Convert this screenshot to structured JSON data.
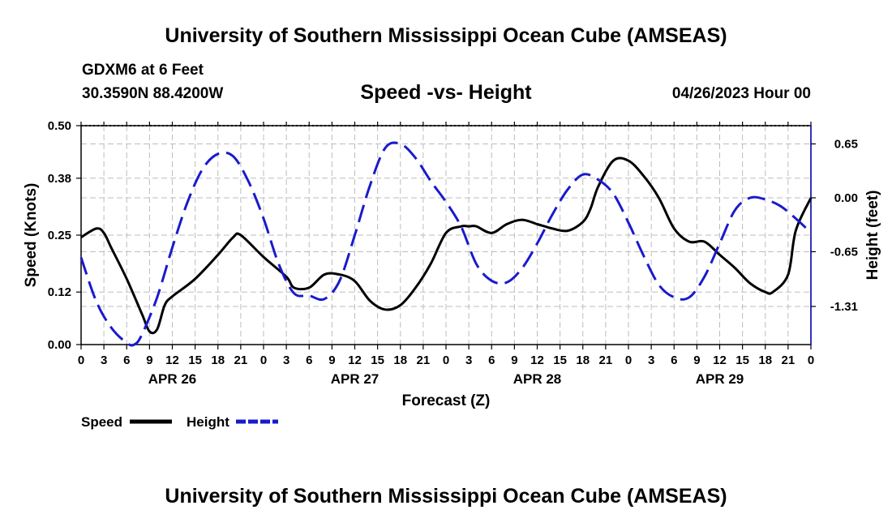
{
  "header": {
    "title": "University of Southern Mississippi Ocean Cube (AMSEAS)",
    "station": "GDXM6 at 6 Feet",
    "coords": "30.3590N  88.4200W",
    "run_time": "04/26/2023 Hour 00"
  },
  "footer": {
    "title": "University of Southern Mississippi Ocean Cube (AMSEAS)"
  },
  "chart_data": {
    "type": "line",
    "title": "Speed -vs- Height",
    "xlabel": "Forecast (Z)",
    "ylabel_left": "Speed (Knots)",
    "ylabel_right": "Height (feet)",
    "x_range_hours": [
      0,
      96
    ],
    "hour_tick_labels": [
      "0",
      "3",
      "6",
      "9",
      "12",
      "15",
      "18",
      "21",
      "0",
      "3",
      "6",
      "9",
      "12",
      "15",
      "18",
      "21",
      "0",
      "3",
      "6",
      "9",
      "12",
      "15",
      "18",
      "21",
      "0",
      "3",
      "6",
      "9",
      "12",
      "15",
      "18",
      "21",
      "0"
    ],
    "day_labels": [
      {
        "label": "APR 26",
        "hour": 12
      },
      {
        "label": "APR 27",
        "hour": 36
      },
      {
        "label": "APR 28",
        "hour": 60
      },
      {
        "label": "APR 29",
        "hour": 84
      }
    ],
    "left_axis": {
      "min": 0.0,
      "max": 0.5,
      "ticks": [
        0.0,
        0.12,
        0.25,
        0.38,
        0.5
      ],
      "tick_labels": [
        "0.00",
        "0.12",
        "0.25",
        "0.38",
        "0.50"
      ]
    },
    "right_axis": {
      "min": -1.77,
      "max": 0.87,
      "ticks": [
        0.65,
        0.0,
        -0.65,
        -1.31
      ],
      "tick_labels": [
        "0.65",
        "0.00",
        "-0.65",
        "-1.31"
      ]
    },
    "grid": true,
    "legend": [
      {
        "name": "Speed",
        "color": "#000000",
        "style": "solid"
      },
      {
        "name": "Height",
        "color": "#1a1acc",
        "style": "dashed"
      }
    ],
    "series": [
      {
        "name": "Speed",
        "axis": "left",
        "color": "#000000",
        "x": [
          0,
          2,
          3,
          4,
          6,
          8,
          9,
          10,
          11,
          12,
          15,
          18,
          20,
          21,
          24,
          27,
          28,
          30,
          32,
          34,
          36,
          38,
          40,
          42,
          44,
          46,
          48,
          50,
          51,
          52,
          54,
          56,
          58,
          60,
          61,
          62,
          64,
          66,
          67,
          68,
          70,
          72,
          74,
          76,
          78,
          80,
          82,
          84,
          86,
          88,
          90,
          91,
          93,
          94,
          96
        ],
        "values": [
          0.245,
          0.265,
          0.255,
          0.22,
          0.15,
          0.07,
          0.03,
          0.035,
          0.09,
          0.11,
          0.15,
          0.205,
          0.245,
          0.25,
          0.2,
          0.155,
          0.13,
          0.13,
          0.16,
          0.16,
          0.145,
          0.1,
          0.08,
          0.09,
          0.13,
          0.185,
          0.255,
          0.27,
          0.27,
          0.27,
          0.255,
          0.275,
          0.285,
          0.275,
          0.27,
          0.265,
          0.26,
          0.28,
          0.31,
          0.36,
          0.42,
          0.42,
          0.385,
          0.335,
          0.265,
          0.235,
          0.235,
          0.205,
          0.175,
          0.14,
          0.12,
          0.12,
          0.16,
          0.26,
          0.335
        ]
      },
      {
        "name": "Height",
        "axis": "right",
        "color": "#1a1acc",
        "x": [
          0,
          2,
          4,
          6,
          7,
          8,
          10,
          12,
          14,
          16,
          18,
          20,
          22,
          24,
          26,
          28,
          30,
          32,
          34,
          36,
          38,
          40,
          42,
          44,
          46,
          48,
          50,
          52,
          54,
          56,
          58,
          60,
          62,
          64,
          66,
          68,
          70,
          72,
          74,
          76,
          78,
          80,
          82,
          84,
          86,
          88,
          90,
          92,
          94,
          96
        ],
        "values": [
          -0.72,
          -1.25,
          -1.57,
          -1.75,
          -1.77,
          -1.65,
          -1.2,
          -0.6,
          -0.05,
          0.35,
          0.53,
          0.5,
          0.2,
          -0.25,
          -0.8,
          -1.15,
          -1.18,
          -1.22,
          -1.0,
          -0.45,
          0.15,
          0.6,
          0.65,
          0.48,
          0.2,
          -0.05,
          -0.35,
          -0.8,
          -1.0,
          -1.02,
          -0.85,
          -0.55,
          -0.2,
          0.1,
          0.28,
          0.22,
          0.05,
          -0.3,
          -0.7,
          -1.05,
          -1.2,
          -1.2,
          -0.95,
          -0.55,
          -0.15,
          0.0,
          -0.02,
          -0.1,
          -0.25,
          -0.42
        ]
      }
    ]
  }
}
